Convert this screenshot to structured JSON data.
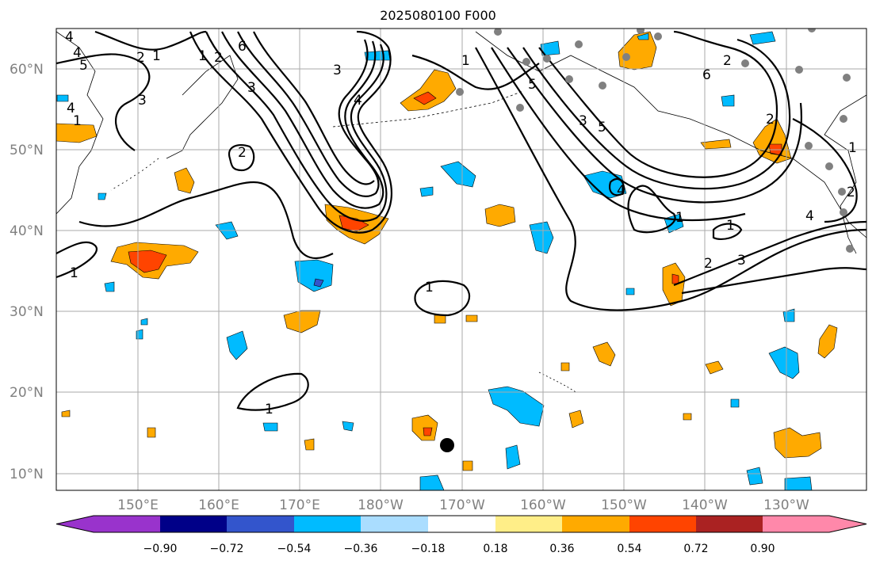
{
  "title": "2025080100 F000",
  "lat_labels": [
    "60°N",
    "50°N",
    "40°N",
    "30°N",
    "20°N",
    "10°N"
  ],
  "lon_labels": [
    "150°E",
    "160°E",
    "170°E",
    "180°W",
    "170°W",
    "160°W",
    "150°W",
    "140°W",
    "130°W"
  ],
  "colorbar": {
    "colors": [
      "#9933cc",
      "#000088",
      "#3355cc",
      "#00bbff",
      "#aaddff",
      "#ffffff",
      "#ffee88",
      "#ffaa00",
      "#ff4400",
      "#aa2222",
      "#ff88aa"
    ],
    "tick_labels": [
      "−0.90",
      "−0.72",
      "−0.54",
      "−0.36",
      "−0.18",
      "0.18",
      "0.36",
      "0.54",
      "0.72",
      "0.90"
    ]
  },
  "contour_labels": [
    "4",
    "5",
    "2",
    "1",
    "3",
    "4",
    "1",
    "4",
    "3",
    "2",
    "1",
    "6",
    "3",
    "1",
    "4",
    "5",
    "5",
    "3",
    "2",
    "2",
    "6",
    "4",
    "2",
    "1",
    "1",
    "2",
    "3",
    "4",
    "1",
    "1",
    "1",
    "1",
    "2"
  ],
  "colors": {
    "positive_orange": "#ffaa00",
    "positive_red": "#ff4400",
    "negative_blue": "#00bbff",
    "negative_darkblue": "#3355cc",
    "station_dot": "#808080",
    "grid": "#aaaaaa"
  }
}
